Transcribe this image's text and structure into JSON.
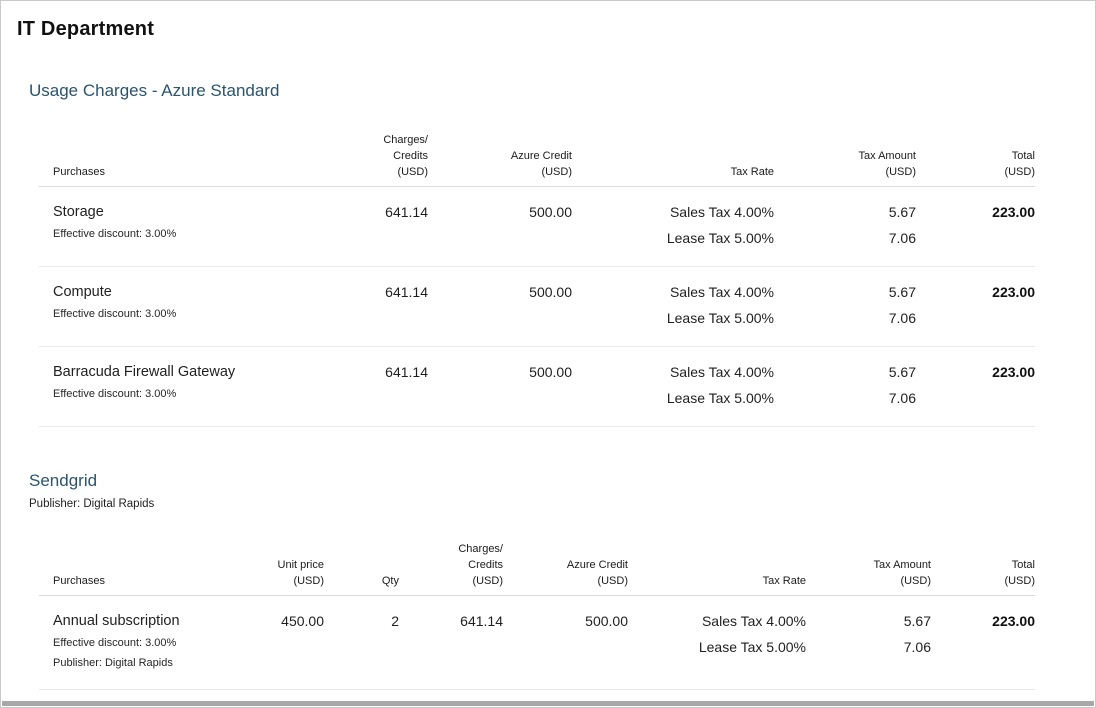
{
  "page": {
    "title": "IT Department"
  },
  "colors": {
    "section_heading_accent": "#2b546e",
    "body_text": "#1f1f1f",
    "row_divider": "#e8e8e8",
    "scrollbar_thumb": "#a8a8a8"
  },
  "sections": [
    {
      "heading": "Usage Charges - Azure Standard",
      "columns": [
        {
          "lines": [
            "Purchases"
          ]
        },
        {
          "lines": [
            "Charges/",
            "Credits",
            "(USD)"
          ]
        },
        {
          "lines": [
            "Azure Credit",
            "(USD)"
          ]
        },
        {
          "lines": [
            "Tax Rate"
          ]
        },
        {
          "lines": [
            "Tax Amount",
            "(USD)"
          ]
        },
        {
          "lines": [
            "Total",
            "(USD)"
          ]
        }
      ],
      "rows": [
        {
          "name": "Storage",
          "details": [
            "Effective discount: 3.00%"
          ],
          "charges_credits": "641.14",
          "azure_credit": "500.00",
          "tax_rates": [
            "Sales Tax 4.00%",
            "Lease Tax 5.00%"
          ],
          "tax_amounts": [
            "5.67",
            "7.06"
          ],
          "total": "223.00"
        },
        {
          "name": "Compute",
          "details": [
            "Effective discount: 3.00%"
          ],
          "charges_credits": "641.14",
          "azure_credit": "500.00",
          "tax_rates": [
            "Sales Tax 4.00%",
            "Lease Tax 5.00%"
          ],
          "tax_amounts": [
            "5.67",
            "7.06"
          ],
          "total": "223.00"
        },
        {
          "name": "Barracuda Firewall Gateway",
          "details": [
            "Effective discount: 3.00%"
          ],
          "charges_credits": "641.14",
          "azure_credit": "500.00",
          "tax_rates": [
            "Sales Tax 4.00%",
            "Lease Tax 5.00%"
          ],
          "tax_amounts": [
            "5.67",
            "7.06"
          ],
          "total": "223.00"
        }
      ]
    },
    {
      "heading": "Sendgrid",
      "publisher": "Publisher: Digital Rapids",
      "columns": [
        {
          "lines": [
            "Purchases"
          ]
        },
        {
          "lines": [
            "Unit price",
            "(USD)"
          ]
        },
        {
          "lines": [
            "Qty"
          ]
        },
        {
          "lines": [
            "Charges/",
            "Credits",
            "(USD)"
          ]
        },
        {
          "lines": [
            "Azure Credit",
            "(USD)"
          ]
        },
        {
          "lines": [
            "Tax Rate"
          ]
        },
        {
          "lines": [
            "Tax Amount",
            "(USD)"
          ]
        },
        {
          "lines": [
            "Total",
            "(USD)"
          ]
        }
      ],
      "rows": [
        {
          "name": "Annual subscription",
          "details": [
            "Effective discount: 3.00%",
            "Publisher: Digital Rapids"
          ],
          "unit_price": "450.00",
          "qty": "2",
          "charges_credits": "641.14",
          "azure_credit": "500.00",
          "tax_rates": [
            "Sales Tax 4.00%",
            "Lease Tax 5.00%"
          ],
          "tax_amounts": [
            "5.67",
            "7.06"
          ],
          "total": "223.00"
        }
      ]
    }
  ]
}
